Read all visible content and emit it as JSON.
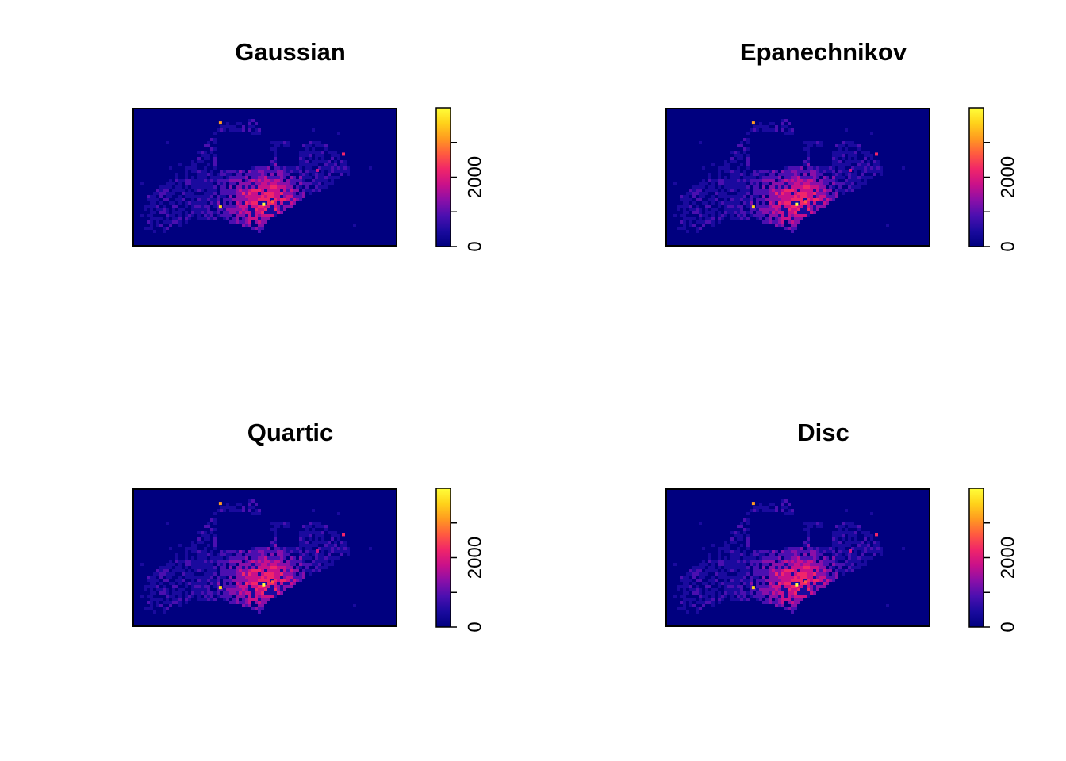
{
  "chart_data": [
    {
      "type": "heatmap",
      "title": "Gaussian",
      "xlabel": "",
      "ylabel": "",
      "legend": {
        "position": "right",
        "range": [
          0,
          4000
        ],
        "tick_values": [
          0,
          1000,
          2000,
          3000
        ],
        "tick_labels": [
          "0",
          "2000"
        ]
      },
      "hotspots": [
        {
          "x": 0.495,
          "y": 0.7,
          "value": 4000
        },
        {
          "x": 0.33,
          "y": 0.1,
          "value": 3000
        },
        {
          "x": 0.33,
          "y": 0.72,
          "value": 3500
        },
        {
          "x": 0.53,
          "y": 0.68,
          "value": 2600
        },
        {
          "x": 0.8,
          "y": 0.33,
          "value": 2300
        },
        {
          "x": 0.7,
          "y": 0.45,
          "value": 1800
        }
      ]
    },
    {
      "type": "heatmap",
      "title": "Epanechnikov",
      "xlabel": "",
      "ylabel": "",
      "legend": {
        "position": "right",
        "range": [
          0,
          4000
        ],
        "tick_values": [
          0,
          1000,
          2000,
          3000
        ],
        "tick_labels": [
          "0",
          "2000"
        ]
      },
      "hotspots": [
        {
          "x": 0.495,
          "y": 0.7,
          "value": 4000
        },
        {
          "x": 0.33,
          "y": 0.1,
          "value": 3000
        },
        {
          "x": 0.33,
          "y": 0.72,
          "value": 3500
        },
        {
          "x": 0.53,
          "y": 0.68,
          "value": 2600
        },
        {
          "x": 0.8,
          "y": 0.33,
          "value": 2300
        },
        {
          "x": 0.7,
          "y": 0.45,
          "value": 1800
        }
      ]
    },
    {
      "type": "heatmap",
      "title": "Quartic",
      "xlabel": "",
      "ylabel": "",
      "legend": {
        "position": "right",
        "range": [
          0,
          4000
        ],
        "tick_values": [
          0,
          1000,
          2000,
          3000
        ],
        "tick_labels": [
          "0",
          "2000"
        ]
      },
      "hotspots": [
        {
          "x": 0.495,
          "y": 0.7,
          "value": 4000
        },
        {
          "x": 0.33,
          "y": 0.1,
          "value": 3000
        },
        {
          "x": 0.33,
          "y": 0.72,
          "value": 3500
        },
        {
          "x": 0.53,
          "y": 0.68,
          "value": 2600
        },
        {
          "x": 0.8,
          "y": 0.33,
          "value": 2300
        },
        {
          "x": 0.7,
          "y": 0.45,
          "value": 1800
        }
      ]
    },
    {
      "type": "heatmap",
      "title": "Disc",
      "xlabel": "",
      "ylabel": "",
      "legend": {
        "position": "right",
        "range": [
          0,
          4000
        ],
        "tick_values": [
          0,
          1000,
          2000,
          3000
        ],
        "tick_labels": [
          "0",
          "2000"
        ]
      },
      "hotspots": [
        {
          "x": 0.495,
          "y": 0.7,
          "value": 4000
        },
        {
          "x": 0.33,
          "y": 0.1,
          "value": 3000
        },
        {
          "x": 0.33,
          "y": 0.72,
          "value": 3500
        },
        {
          "x": 0.53,
          "y": 0.68,
          "value": 2600
        },
        {
          "x": 0.8,
          "y": 0.33,
          "value": 2300
        },
        {
          "x": 0.7,
          "y": 0.45,
          "value": 1800
        }
      ]
    }
  ],
  "colors": {
    "background": "#00007f",
    "palette": [
      "#00007f",
      "#1a0a9e",
      "#4b0fb0",
      "#8a0fa8",
      "#c8108a",
      "#f0256a",
      "#ff5a40",
      "#ff9a20",
      "#ffd21a",
      "#ffff3a"
    ]
  }
}
